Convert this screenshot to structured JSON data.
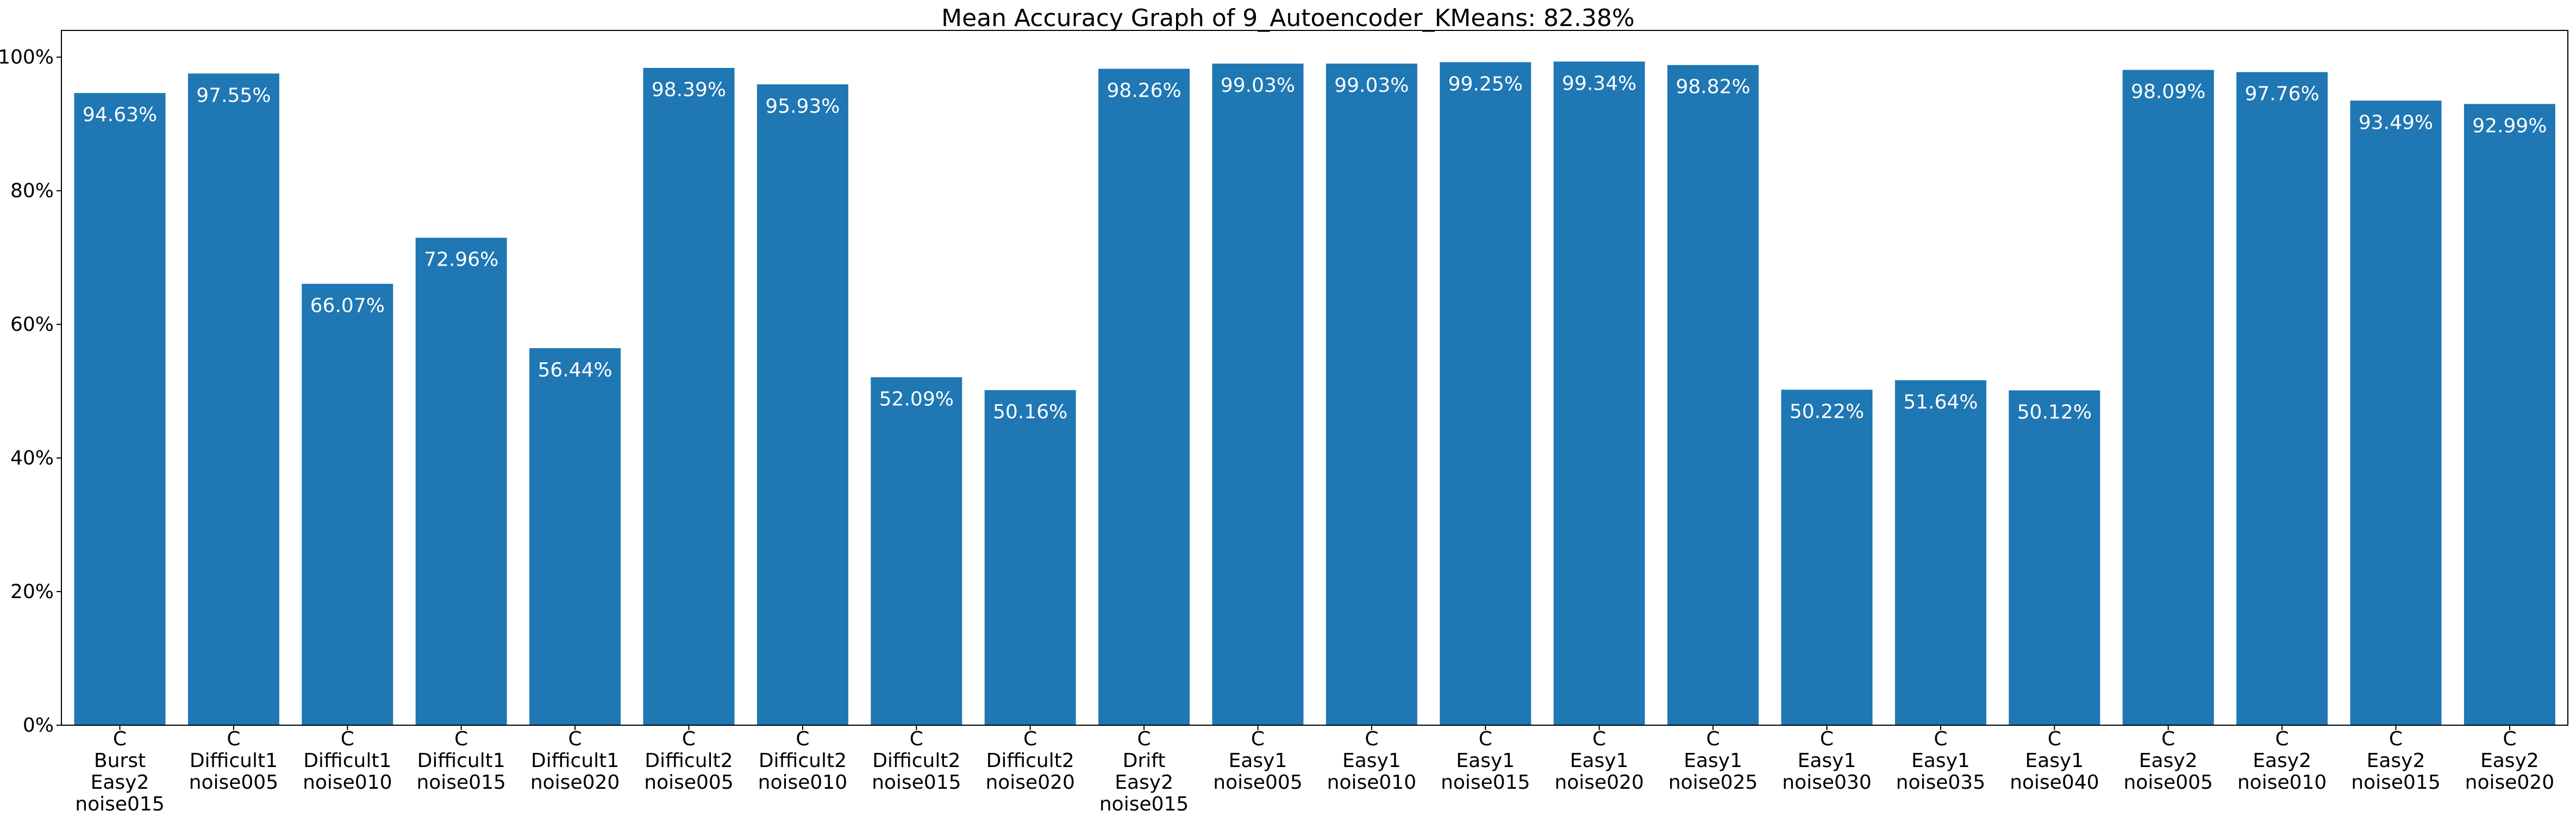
{
  "chart_data": {
    "type": "bar",
    "title": "Mean Accuracy Graph of 9_Autoencoder_KMeans: 82.38%",
    "xlabel": "",
    "ylabel": "",
    "ylim": [
      0,
      104
    ],
    "grid": false,
    "legend": "none",
    "y_ticks": [
      "0%",
      "20%",
      "40%",
      "60%",
      "80%",
      "100%"
    ],
    "y_tick_values": [
      0,
      20,
      40,
      60,
      80,
      100
    ],
    "bar_color": "#1f77b4",
    "label_color": "#ffffff",
    "categories": [
      [
        "C",
        "Burst",
        "Easy2",
        "noise015"
      ],
      [
        "C",
        "Difficult1",
        "noise005"
      ],
      [
        "C",
        "Difficult1",
        "noise010"
      ],
      [
        "C",
        "Difficult1",
        "noise015"
      ],
      [
        "C",
        "Difficult1",
        "noise020"
      ],
      [
        "C",
        "Difficult2",
        "noise005"
      ],
      [
        "C",
        "Difficult2",
        "noise010"
      ],
      [
        "C",
        "Difficult2",
        "noise015"
      ],
      [
        "C",
        "Difficult2",
        "noise020"
      ],
      [
        "C",
        "Drift",
        "Easy2",
        "noise015"
      ],
      [
        "C",
        "Easy1",
        "noise005"
      ],
      [
        "C",
        "Easy1",
        "noise010"
      ],
      [
        "C",
        "Easy1",
        "noise015"
      ],
      [
        "C",
        "Easy1",
        "noise020"
      ],
      [
        "C",
        "Easy1",
        "noise025"
      ],
      [
        "C",
        "Easy1",
        "noise030"
      ],
      [
        "C",
        "Easy1",
        "noise035"
      ],
      [
        "C",
        "Easy1",
        "noise040"
      ],
      [
        "C",
        "Easy2",
        "noise005"
      ],
      [
        "C",
        "Easy2",
        "noise010"
      ],
      [
        "C",
        "Easy2",
        "noise015"
      ],
      [
        "C",
        "Easy2",
        "noise020"
      ]
    ],
    "values": [
      94.63,
      97.55,
      66.07,
      72.96,
      56.44,
      98.39,
      95.93,
      52.09,
      50.16,
      98.26,
      99.03,
      99.03,
      99.25,
      99.34,
      98.82,
      50.22,
      51.64,
      50.12,
      98.09,
      97.76,
      93.49,
      92.99
    ],
    "value_labels": [
      "94.63%",
      "97.55%",
      "66.07%",
      "72.96%",
      "56.44%",
      "98.39%",
      "95.93%",
      "52.09%",
      "50.16%",
      "98.26%",
      "99.03%",
      "99.03%",
      "99.25%",
      "99.34%",
      "98.82%",
      "50.22%",
      "51.64%",
      "50.12%",
      "98.09%",
      "97.76%",
      "93.49%",
      "92.99%"
    ]
  }
}
